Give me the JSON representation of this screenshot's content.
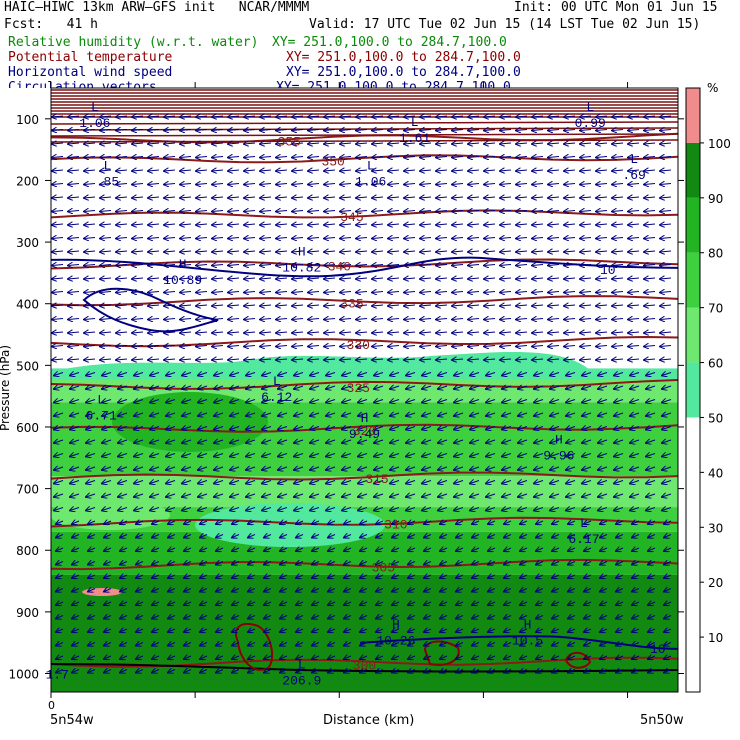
{
  "header": {
    "title": "HAIC–HIWC 13km ARW–GFS init   NCAR/MMMM",
    "init": "Init: 00 UTC Mon 01 Jun 15",
    "fcst": "Fcst:   41 h",
    "valid": "Valid: 17 UTC Tue 02 Jun 15 (14 LST Tue 02 Jun 15)",
    "fields": [
      {
        "label": "Relative humidity (w.r.t. water)",
        "xy": "XY= 251.0,100.0 to 284.7,100.0",
        "color": "#0a8a0a"
      },
      {
        "label": "Potential temperature",
        "xy": "XY= 251.0,100.0 to 284.7,100.0",
        "color": "#8b0000"
      },
      {
        "label": "Horizontal wind speed",
        "xy": "XY= 251.0,100.0 to 284.7,100.0",
        "color": "#000080"
      },
      {
        "label": "Circulation vectors",
        "xy": "XY= 251.0,100.0 to 284.7,100.0",
        "color": "#000080"
      }
    ]
  },
  "chart_data": {
    "type": "cross-section",
    "ylabel": "Pressure (hPa)",
    "xlabel": "Distance (km)",
    "x_start_label": "5n54w",
    "x_end_label": "5n50w",
    "x_zero_label": "0",
    "yticks": [
      100,
      200,
      300,
      400,
      500,
      600,
      700,
      800,
      900,
      1000
    ],
    "ylim": [
      50,
      1030
    ],
    "colorbar": {
      "unit": "%",
      "ticks": [
        10,
        20,
        30,
        40,
        50,
        60,
        70,
        80,
        90,
        100
      ],
      "levels": [
        {
          "from": 0,
          "to": 50,
          "color": "#ffffff"
        },
        {
          "from": 50,
          "to": 60,
          "color": "#52e89e"
        },
        {
          "from": 60,
          "to": 70,
          "color": "#6ee86e"
        },
        {
          "from": 70,
          "to": 80,
          "color": "#3ed03e"
        },
        {
          "from": 80,
          "to": 90,
          "color": "#22b422"
        },
        {
          "from": 90,
          "to": 100,
          "color": "#128a12"
        },
        {
          "from": 100,
          "to": 110,
          "color": "#f08c8c"
        }
      ]
    },
    "rh_bands": [
      {
        "top": 505,
        "level": 50
      },
      {
        "top": 520,
        "level": 60
      },
      {
        "top": 560,
        "level": 70
      },
      {
        "top": 680,
        "level": 60
      },
      {
        "top": 730,
        "level": 70
      },
      {
        "top": 770,
        "level": 80
      },
      {
        "top": 840,
        "level": 90
      }
    ],
    "theta_lines": [
      {
        "value": 300,
        "p": 985,
        "label": "300"
      },
      {
        "value": 305,
        "p": 826,
        "label": "305"
      },
      {
        "value": 310,
        "p": 757,
        "label": "310"
      },
      {
        "value": 315,
        "p": 683,
        "label": "315"
      },
      {
        "value": 320,
        "p": 605,
        "label": "320"
      },
      {
        "value": 325,
        "p": 535,
        "label": "325"
      },
      {
        "value": 330,
        "p": 465,
        "label": "330"
      },
      {
        "value": 335,
        "p": 398,
        "label": "335"
      },
      {
        "value": 340,
        "p": 338,
        "label": "340"
      },
      {
        "value": 345,
        "p": 258,
        "label": "345"
      },
      {
        "value": 350,
        "p": 168,
        "label": "350"
      },
      {
        "value": 355,
        "p": 135,
        "label": "355"
      }
    ],
    "wind_contours": [
      {
        "value": 10,
        "p": 345,
        "label": "10"
      },
      {
        "value": 10,
        "p": 960,
        "label": "10"
      }
    ],
    "extrema": [
      {
        "type": "L",
        "value": "1.06",
        "x": 0.07,
        "p": 100
      },
      {
        "type": "L",
        "value": ".85",
        "x": 0.09,
        "p": 195
      },
      {
        "type": "L",
        "value": "1.06",
        "x": 0.51,
        "p": 195
      },
      {
        "type": "L",
        "value": "1.61",
        "x": 0.58,
        "p": 125
      },
      {
        "type": "L",
        "value": ".69",
        "x": 0.93,
        "p": 185
      },
      {
        "type": "L",
        "value": "0.99",
        "x": 0.86,
        "p": 100
      },
      {
        "type": "H",
        "value": "10.89",
        "x": 0.21,
        "p": 355
      },
      {
        "type": "H",
        "value": "10.82",
        "x": 0.4,
        "p": 335
      },
      {
        "type": "L",
        "value": "6.71",
        "x": 0.08,
        "p": 575
      },
      {
        "type": "L",
        "value": "6.12",
        "x": 0.36,
        "p": 545
      },
      {
        "type": "H",
        "value": "9.49",
        "x": 0.5,
        "p": 605
      },
      {
        "type": "H",
        "value": "9.96",
        "x": 0.81,
        "p": 640
      },
      {
        "type": "L",
        "value": "6.17",
        "x": 0.85,
        "p": 775
      },
      {
        "type": "H",
        "value": "10.26",
        "x": 0.55,
        "p": 940
      },
      {
        "type": "H",
        "value": "10.5",
        "x": 0.76,
        "p": 940
      },
      {
        "type": "L",
        "value": "206.9",
        "x": 0.4,
        "p": 1005
      },
      {
        "type": "",
        "value": "1.7",
        "x": 0.01,
        "p": 995
      }
    ]
  }
}
